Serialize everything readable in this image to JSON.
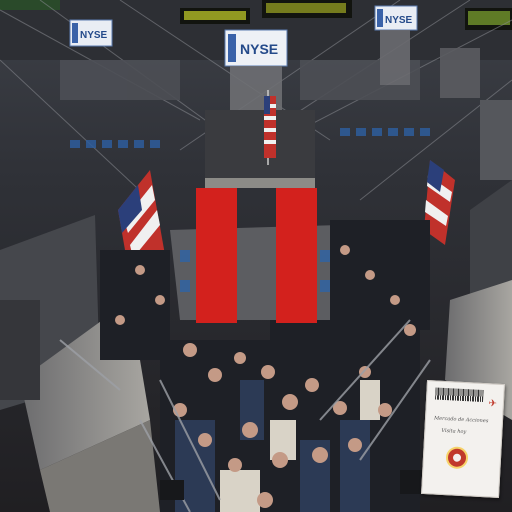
{
  "photo": {
    "description_name": "trading-floor-photo",
    "signs": [
      "NYSE",
      "NYSE",
      "NYSE"
    ]
  },
  "overlay": {
    "icon": "pause-icon",
    "color": "#d3211d"
  },
  "ticket": {
    "line1": "Mercado de Acciones",
    "line2": "Visita hoy",
    "plane_icon": "airplane-icon",
    "seal_color": "#c0392b"
  }
}
